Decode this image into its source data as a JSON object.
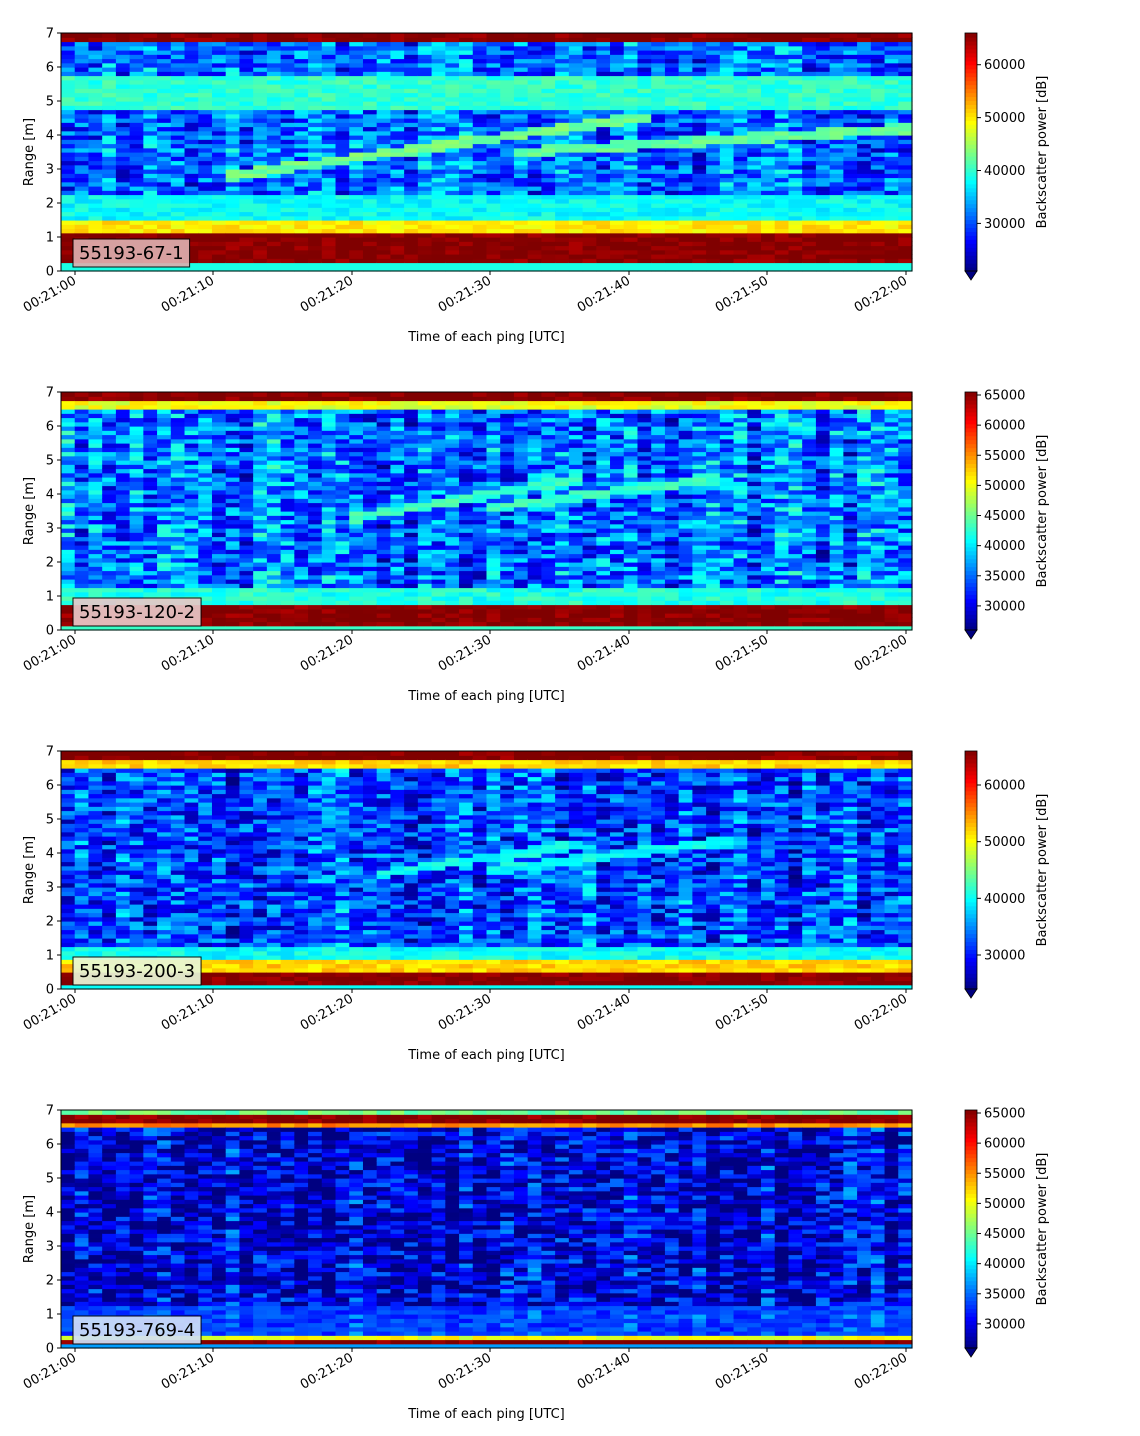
{
  "chart_data": [
    {
      "type": "heatmap",
      "label": "55193-67-1",
      "label_color": "#deaeae",
      "xlabel": "Time of each ping [UTC]",
      "ylabel": "Range [m]",
      "xlim": [
        "00:21:00",
        "00:22:00"
      ],
      "ylim": [
        0,
        7
      ],
      "xticks": [
        "00:21:00",
        "00:21:10",
        "00:21:20",
        "00:21:30",
        "00:21:40",
        "00:21:50",
        "00:22:00"
      ],
      "yticks": [
        0,
        1,
        2,
        3,
        4,
        5,
        6,
        7
      ],
      "colorbar": {
        "label": "Backscatter power [dB]",
        "range": [
          21000,
          66000
        ],
        "ticks": [
          30000,
          40000,
          50000,
          60000
        ],
        "extend": "min"
      },
      "colormap": "jet",
      "bands": [
        {
          "from": 0.2,
          "to": 1.15,
          "level": 66000
        },
        {
          "from": 1.15,
          "to": 1.5,
          "level": 50000
        },
        {
          "from": 1.5,
          "to": 2.2,
          "level": 38000
        },
        {
          "from": 4.7,
          "to": 5.8,
          "level": 40000
        },
        {
          "from": 6.7,
          "to": 7.0,
          "level": 66000
        }
      ],
      "background_level": 31000,
      "tracks": [
        {
          "t0": "00:21:11",
          "r0": 2.8,
          "t1": "00:21:42",
          "r1": 4.6,
          "level": 43000
        },
        {
          "t0": "00:21:32",
          "r0": 3.5,
          "t1": "00:22:00",
          "r1": 4.2,
          "level": 42000
        }
      ]
    },
    {
      "type": "heatmap",
      "label": "55193-120-2",
      "label_color": "#e8c8c8",
      "xlabel": "Time of each ping [UTC]",
      "ylabel": "Range [m]",
      "xlim": [
        "00:21:00",
        "00:22:00"
      ],
      "ylim": [
        0,
        7
      ],
      "xticks": [
        "00:21:00",
        "00:21:10",
        "00:21:20",
        "00:21:30",
        "00:21:40",
        "00:21:50",
        "00:22:00"
      ],
      "yticks": [
        0,
        1,
        2,
        3,
        4,
        5,
        6,
        7
      ],
      "colorbar": {
        "label": "Backscatter power [dB]",
        "range": [
          26000,
          65500
        ],
        "ticks": [
          30000,
          35000,
          40000,
          45000,
          50000,
          55000,
          60000,
          65000
        ],
        "extend": "min"
      },
      "colormap": "jet",
      "bands": [
        {
          "from": 0.1,
          "to": 0.7,
          "level": 65500
        },
        {
          "from": 0.7,
          "to": 1.3,
          "level": 42000
        },
        {
          "from": 6.5,
          "to": 6.7,
          "level": 50000
        },
        {
          "from": 6.7,
          "to": 7.0,
          "level": 65500
        }
      ],
      "background_level": 35000,
      "tracks": [
        {
          "t0": "00:21:20",
          "r0": 3.3,
          "t1": "00:21:37",
          "r1": 4.5,
          "level": 43000
        },
        {
          "t0": "00:21:30",
          "r0": 3.6,
          "t1": "00:21:47",
          "r1": 4.5,
          "level": 43000
        }
      ]
    },
    {
      "type": "heatmap",
      "label": "55193-200-3",
      "label_color": "#e8f8d8",
      "xlabel": "Time of each ping [UTC]",
      "ylabel": "Range [m]",
      "xlim": [
        "00:21:00",
        "00:22:00"
      ],
      "ylim": [
        0,
        7
      ],
      "xticks": [
        "00:21:00",
        "00:21:10",
        "00:21:20",
        "00:21:30",
        "00:21:40",
        "00:21:50",
        "00:22:00"
      ],
      "yticks": [
        0,
        1,
        2,
        3,
        4,
        5,
        6,
        7
      ],
      "colorbar": {
        "label": "Backscatter power [dB]",
        "range": [
          24000,
          66000
        ],
        "ticks": [
          30000,
          40000,
          50000,
          60000
        ],
        "extend": "min"
      },
      "colormap": "jet",
      "bands": [
        {
          "from": 0.15,
          "to": 0.45,
          "level": 66000
        },
        {
          "from": 0.45,
          "to": 0.85,
          "level": 52000
        },
        {
          "from": 0.85,
          "to": 1.3,
          "level": 40000
        },
        {
          "from": 6.5,
          "to": 6.7,
          "level": 52000
        },
        {
          "from": 6.7,
          "to": 7.0,
          "level": 66000
        }
      ],
      "background_level": 32000,
      "tracks": [
        {
          "t0": "00:21:22",
          "r0": 3.4,
          "t1": "00:21:37",
          "r1": 4.3,
          "level": 40000
        },
        {
          "t0": "00:21:30",
          "r0": 3.5,
          "t1": "00:21:48",
          "r1": 4.4,
          "level": 40000
        }
      ]
    },
    {
      "type": "heatmap",
      "label": "55193-769-4",
      "label_color": "#d0e0f8",
      "xlabel": "Time of each ping [UTC]",
      "ylabel": "Range [m]",
      "xlim": [
        "00:21:00",
        "00:22:00"
      ],
      "ylim": [
        0,
        7
      ],
      "xticks": [
        "00:21:00",
        "00:21:10",
        "00:21:20",
        "00:21:30",
        "00:21:40",
        "00:21:50",
        "00:22:00"
      ],
      "yticks": [
        0,
        1,
        2,
        3,
        4,
        5,
        6,
        7
      ],
      "colorbar": {
        "label": "Backscatter power [dB]",
        "range": [
          26000,
          65500
        ],
        "ticks": [
          30000,
          35000,
          40000,
          45000,
          50000,
          55000,
          60000,
          65000
        ],
        "extend": "min"
      },
      "colormap": "jet",
      "bands": [
        {
          "from": 0.15,
          "to": 0.3,
          "level": 65500
        },
        {
          "from": 0.3,
          "to": 0.4,
          "level": 50000
        },
        {
          "from": 0.4,
          "to": 1.2,
          "level": 33000
        },
        {
          "from": 6.5,
          "to": 6.65,
          "level": 55000
        },
        {
          "from": 6.65,
          "to": 6.85,
          "level": 65500
        },
        {
          "from": 6.85,
          "to": 7.0,
          "level": 45000
        }
      ],
      "background_level": 29000,
      "tracks": []
    }
  ]
}
